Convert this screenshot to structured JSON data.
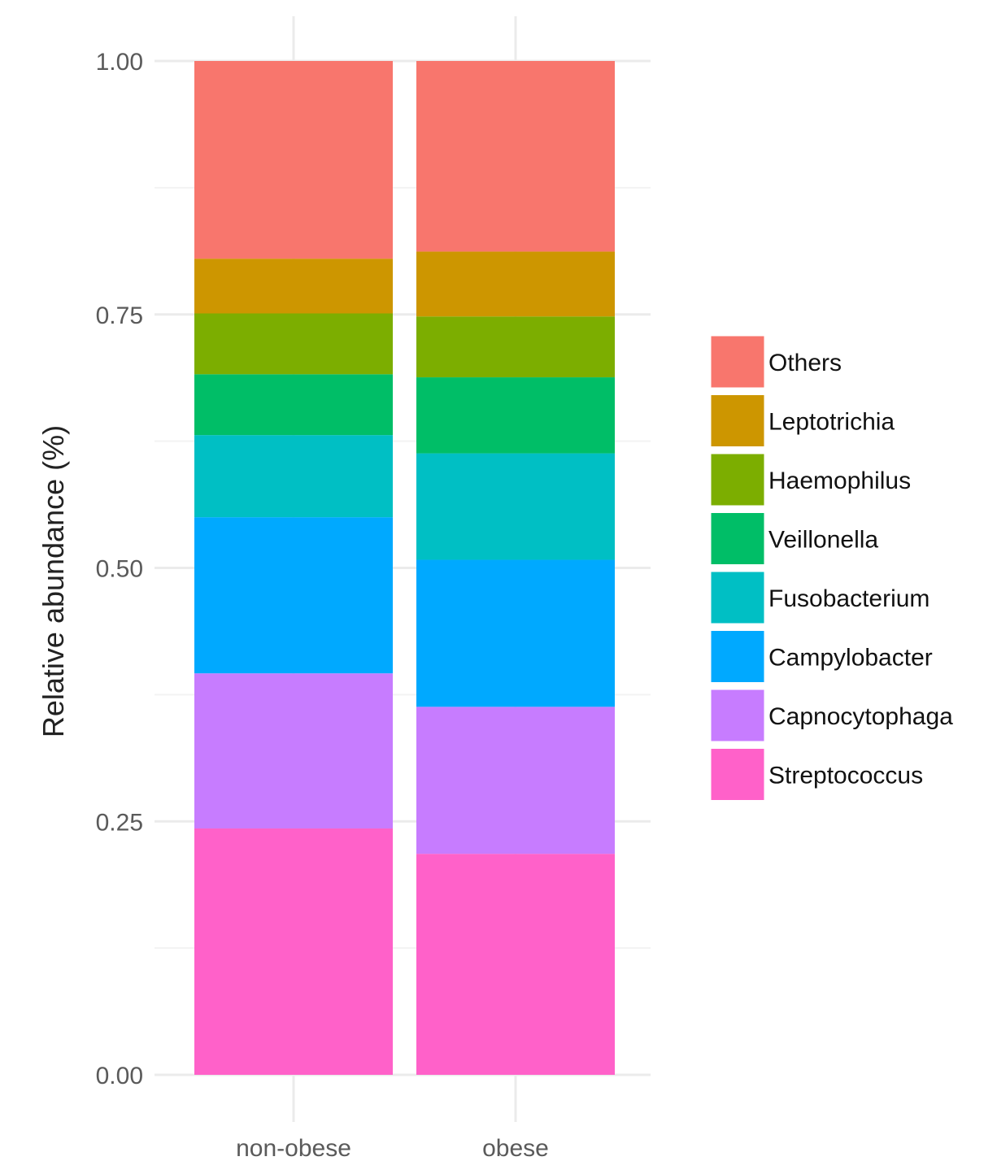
{
  "chart_data": {
    "type": "bar",
    "stacked": true,
    "ylabel": "Relative abundance (%)",
    "xlabel": "",
    "ylim": [
      0,
      1
    ],
    "yticks": [
      "0.00",
      "0.25",
      "0.50",
      "0.75",
      "1.00"
    ],
    "grid": true,
    "legend_position": "right",
    "categories": [
      "non-obese",
      "obese"
    ],
    "series": [
      {
        "name": "Streptococcus",
        "color": "#FF61C9",
        "values": [
          0.243,
          0.218
        ]
      },
      {
        "name": "Capnocytophaga",
        "color": "#C77CFF",
        "values": [
          0.153,
          0.145
        ]
      },
      {
        "name": "Campylobacter",
        "color": "#00A9FF",
        "values": [
          0.154,
          0.145
        ]
      },
      {
        "name": "Fusobacterium",
        "color": "#00BFC4",
        "values": [
          0.081,
          0.105
        ]
      },
      {
        "name": "Veillonella",
        "color": "#00BE67",
        "values": [
          0.06,
          0.075
        ]
      },
      {
        "name": "Haemophilus",
        "color": "#7CAE00",
        "values": [
          0.06,
          0.06
        ]
      },
      {
        "name": "Leptotrichia",
        "color": "#CD9600",
        "values": [
          0.054,
          0.064
        ]
      },
      {
        "name": "Others",
        "color": "#F8766D",
        "values": [
          0.195,
          0.188
        ]
      }
    ]
  }
}
